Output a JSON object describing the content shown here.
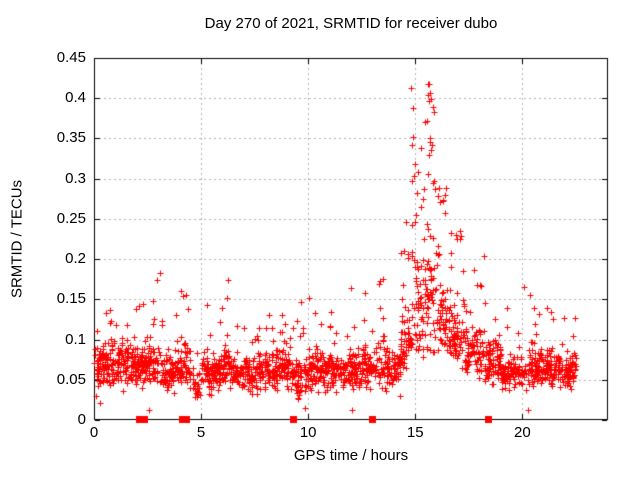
{
  "chart_data": {
    "type": "scatter",
    "title": "Day 270 of 2021, SRMTID for receiver dubo",
    "xlabel": "GPS time / hours",
    "ylabel": "SRMTID / TECUs",
    "xlim": [
      0,
      24
    ],
    "ylim": [
      0,
      0.45
    ],
    "xticks": [
      0,
      5,
      10,
      15,
      20
    ],
    "xtick_labels": [
      "0",
      "5",
      "10",
      "15",
      "20"
    ],
    "yticks": [
      0,
      0.05,
      0.1,
      0.15,
      0.2,
      0.25,
      0.3,
      0.35,
      0.4,
      0.45
    ],
    "ytick_labels": [
      "0",
      "0.05",
      "0.1",
      "0.15",
      "0.2",
      "0.25",
      "0.3",
      "0.35",
      "0.4",
      "0.45"
    ],
    "grid": true,
    "legend": "none",
    "marker": "plus",
    "marker_size_px": 7,
    "marker_color": "#ff0000",
    "grid_color": "#b5b5b5",
    "border_color": "#000000",
    "text_color": "#000000",
    "seed": 7,
    "segment_fields": [
      "x_start",
      "x_end",
      "n_points",
      "band_center",
      "band_halfwidth",
      "spike_prob",
      "spike_max"
    ],
    "envelope_segments": [
      [
        0.0,
        0.5,
        50,
        0.065,
        0.04,
        0.06,
        0.13
      ],
      [
        0.5,
        1.0,
        52,
        0.07,
        0.04,
        0.08,
        0.16
      ],
      [
        1.0,
        1.6,
        62,
        0.07,
        0.04,
        0.1,
        0.175
      ],
      [
        1.6,
        2.2,
        58,
        0.065,
        0.035,
        0.07,
        0.145
      ],
      [
        2.2,
        3.2,
        100,
        0.07,
        0.04,
        0.1,
        0.19
      ],
      [
        3.2,
        4.0,
        78,
        0.06,
        0.035,
        0.07,
        0.15
      ],
      [
        4.0,
        4.5,
        50,
        0.065,
        0.035,
        0.12,
        0.175
      ],
      [
        4.5,
        5.0,
        26,
        0.045,
        0.025,
        0.04,
        0.09
      ],
      [
        5.0,
        5.8,
        78,
        0.06,
        0.033,
        0.07,
        0.15
      ],
      [
        5.8,
        6.5,
        68,
        0.065,
        0.035,
        0.1,
        0.175
      ],
      [
        6.5,
        7.5,
        92,
        0.058,
        0.032,
        0.05,
        0.13
      ],
      [
        7.5,
        8.5,
        92,
        0.06,
        0.033,
        0.06,
        0.145
      ],
      [
        8.5,
        9.2,
        66,
        0.065,
        0.035,
        0.09,
        0.17
      ],
      [
        9.2,
        10.0,
        72,
        0.055,
        0.035,
        0.06,
        0.15
      ],
      [
        10.0,
        10.8,
        78,
        0.062,
        0.035,
        0.09,
        0.17
      ],
      [
        10.8,
        11.8,
        92,
        0.06,
        0.033,
        0.06,
        0.14
      ],
      [
        11.8,
        12.5,
        68,
        0.062,
        0.035,
        0.08,
        0.165
      ],
      [
        12.5,
        13.6,
        98,
        0.065,
        0.038,
        0.1,
        0.185
      ],
      [
        13.6,
        14.3,
        66,
        0.06,
        0.035,
        0.06,
        0.14
      ],
      [
        14.3,
        14.8,
        55,
        0.09,
        0.05,
        0.25,
        0.27
      ],
      [
        14.8,
        15.4,
        60,
        0.13,
        0.08,
        0.3,
        0.4
      ],
      [
        15.4,
        16.0,
        66,
        0.15,
        0.09,
        0.3,
        0.42
      ],
      [
        16.0,
        16.5,
        56,
        0.12,
        0.06,
        0.25,
        0.3
      ],
      [
        16.5,
        17.3,
        76,
        0.1,
        0.05,
        0.2,
        0.24
      ],
      [
        17.3,
        18.2,
        84,
        0.085,
        0.045,
        0.15,
        0.21
      ],
      [
        18.2,
        19.0,
        78,
        0.07,
        0.04,
        0.08,
        0.17
      ],
      [
        19.0,
        20.0,
        92,
        0.06,
        0.033,
        0.05,
        0.14
      ],
      [
        20.0,
        20.9,
        84,
        0.065,
        0.038,
        0.1,
        0.175
      ],
      [
        20.9,
        21.6,
        72,
        0.065,
        0.035,
        0.08,
        0.16
      ],
      [
        21.6,
        22.5,
        88,
        0.062,
        0.033,
        0.04,
        0.13
      ]
    ],
    "extra_points": [
      [
        14.82,
        0.413
      ],
      [
        15.62,
        0.418
      ],
      [
        15.7,
        0.406
      ],
      [
        15.66,
        0.396
      ],
      [
        15.56,
        0.372
      ],
      [
        14.88,
        0.352
      ],
      [
        14.85,
        0.342
      ],
      [
        15.68,
        0.345
      ],
      [
        15.73,
        0.336
      ],
      [
        15.63,
        0.33
      ],
      [
        14.97,
        0.318
      ],
      [
        15.14,
        0.308
      ],
      [
        15.59,
        0.306
      ],
      [
        15.05,
        0.255
      ],
      [
        16.9,
        0.23
      ],
      [
        17.1,
        0.225
      ],
      [
        12.06,
        0.012
      ],
      [
        9.85,
        0.015
      ],
      [
        2.55,
        0.013
      ],
      [
        20.25,
        0.012
      ],
      [
        0.3,
        0.021
      ]
    ],
    "event_squares_x": [
      2.1,
      2.35,
      4.1,
      4.3,
      9.3,
      13.0,
      18.4
    ]
  }
}
